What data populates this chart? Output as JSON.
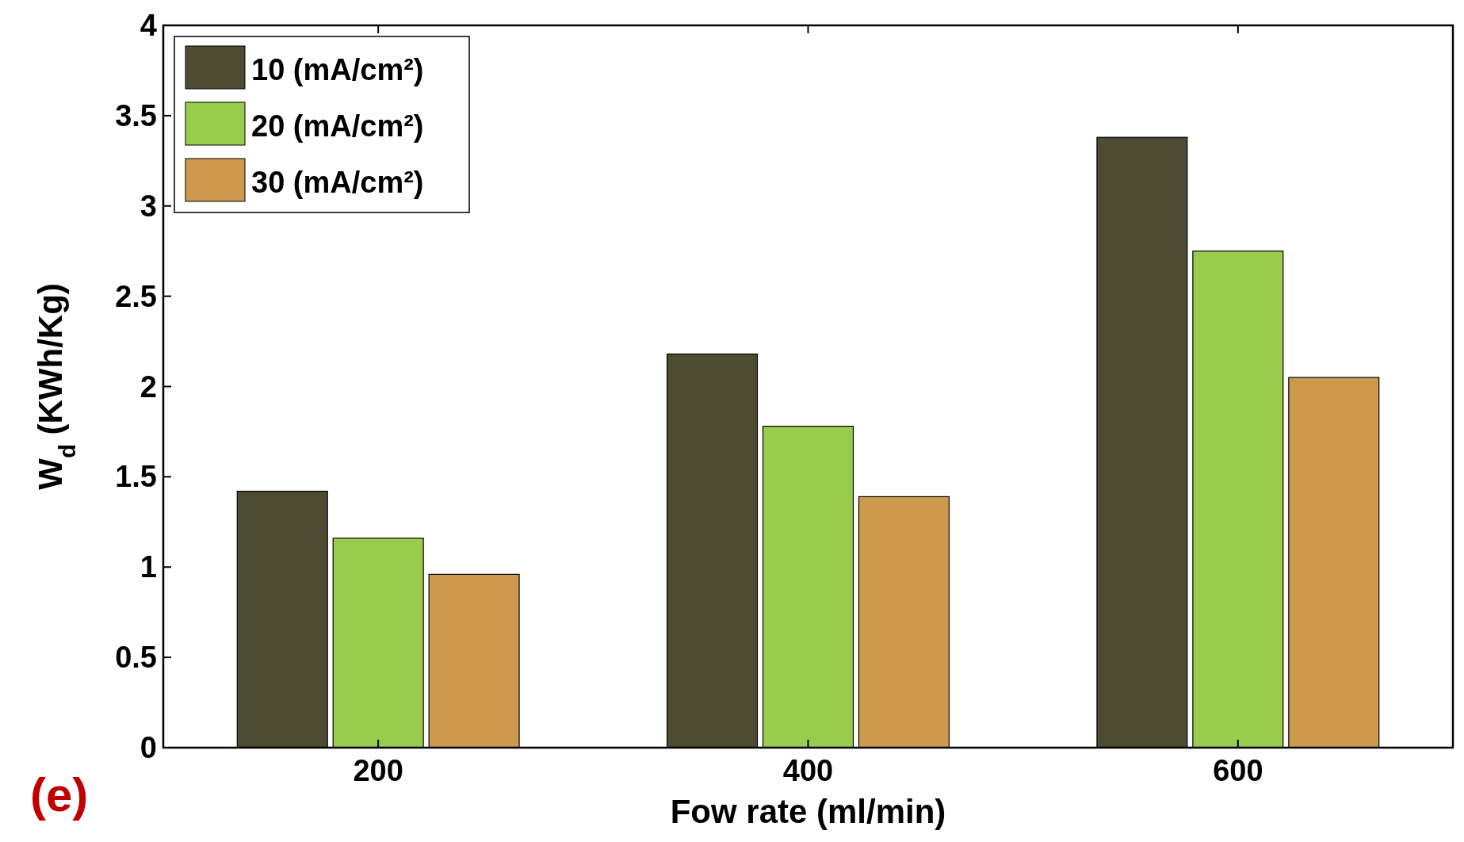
{
  "chart_data": {
    "type": "bar",
    "xlabel": "Fow rate (ml/min)",
    "ylabel": "W$_{d}$ (KWh/Kg)",
    "categories": [
      "200",
      "400",
      "600"
    ],
    "series": [
      {
        "name": "10 (mA/cm²)",
        "color": "#4d4c33",
        "values": [
          1.42,
          2.18,
          3.38
        ]
      },
      {
        "name": "20 (mA/cm²)",
        "color": "#99cc4d",
        "values": [
          1.16,
          1.78,
          2.75
        ]
      },
      {
        "name": "30 (mA/cm²)",
        "color": "#cc994d",
        "values": [
          0.96,
          1.39,
          2.05
        ]
      }
    ],
    "ylim": [
      0,
      4
    ],
    "yticks": [
      0,
      0.5,
      1,
      1.5,
      2,
      2.5,
      3,
      3.5,
      4
    ],
    "grid": false,
    "legend": "top left",
    "annotations": [
      "(e)"
    ]
  }
}
